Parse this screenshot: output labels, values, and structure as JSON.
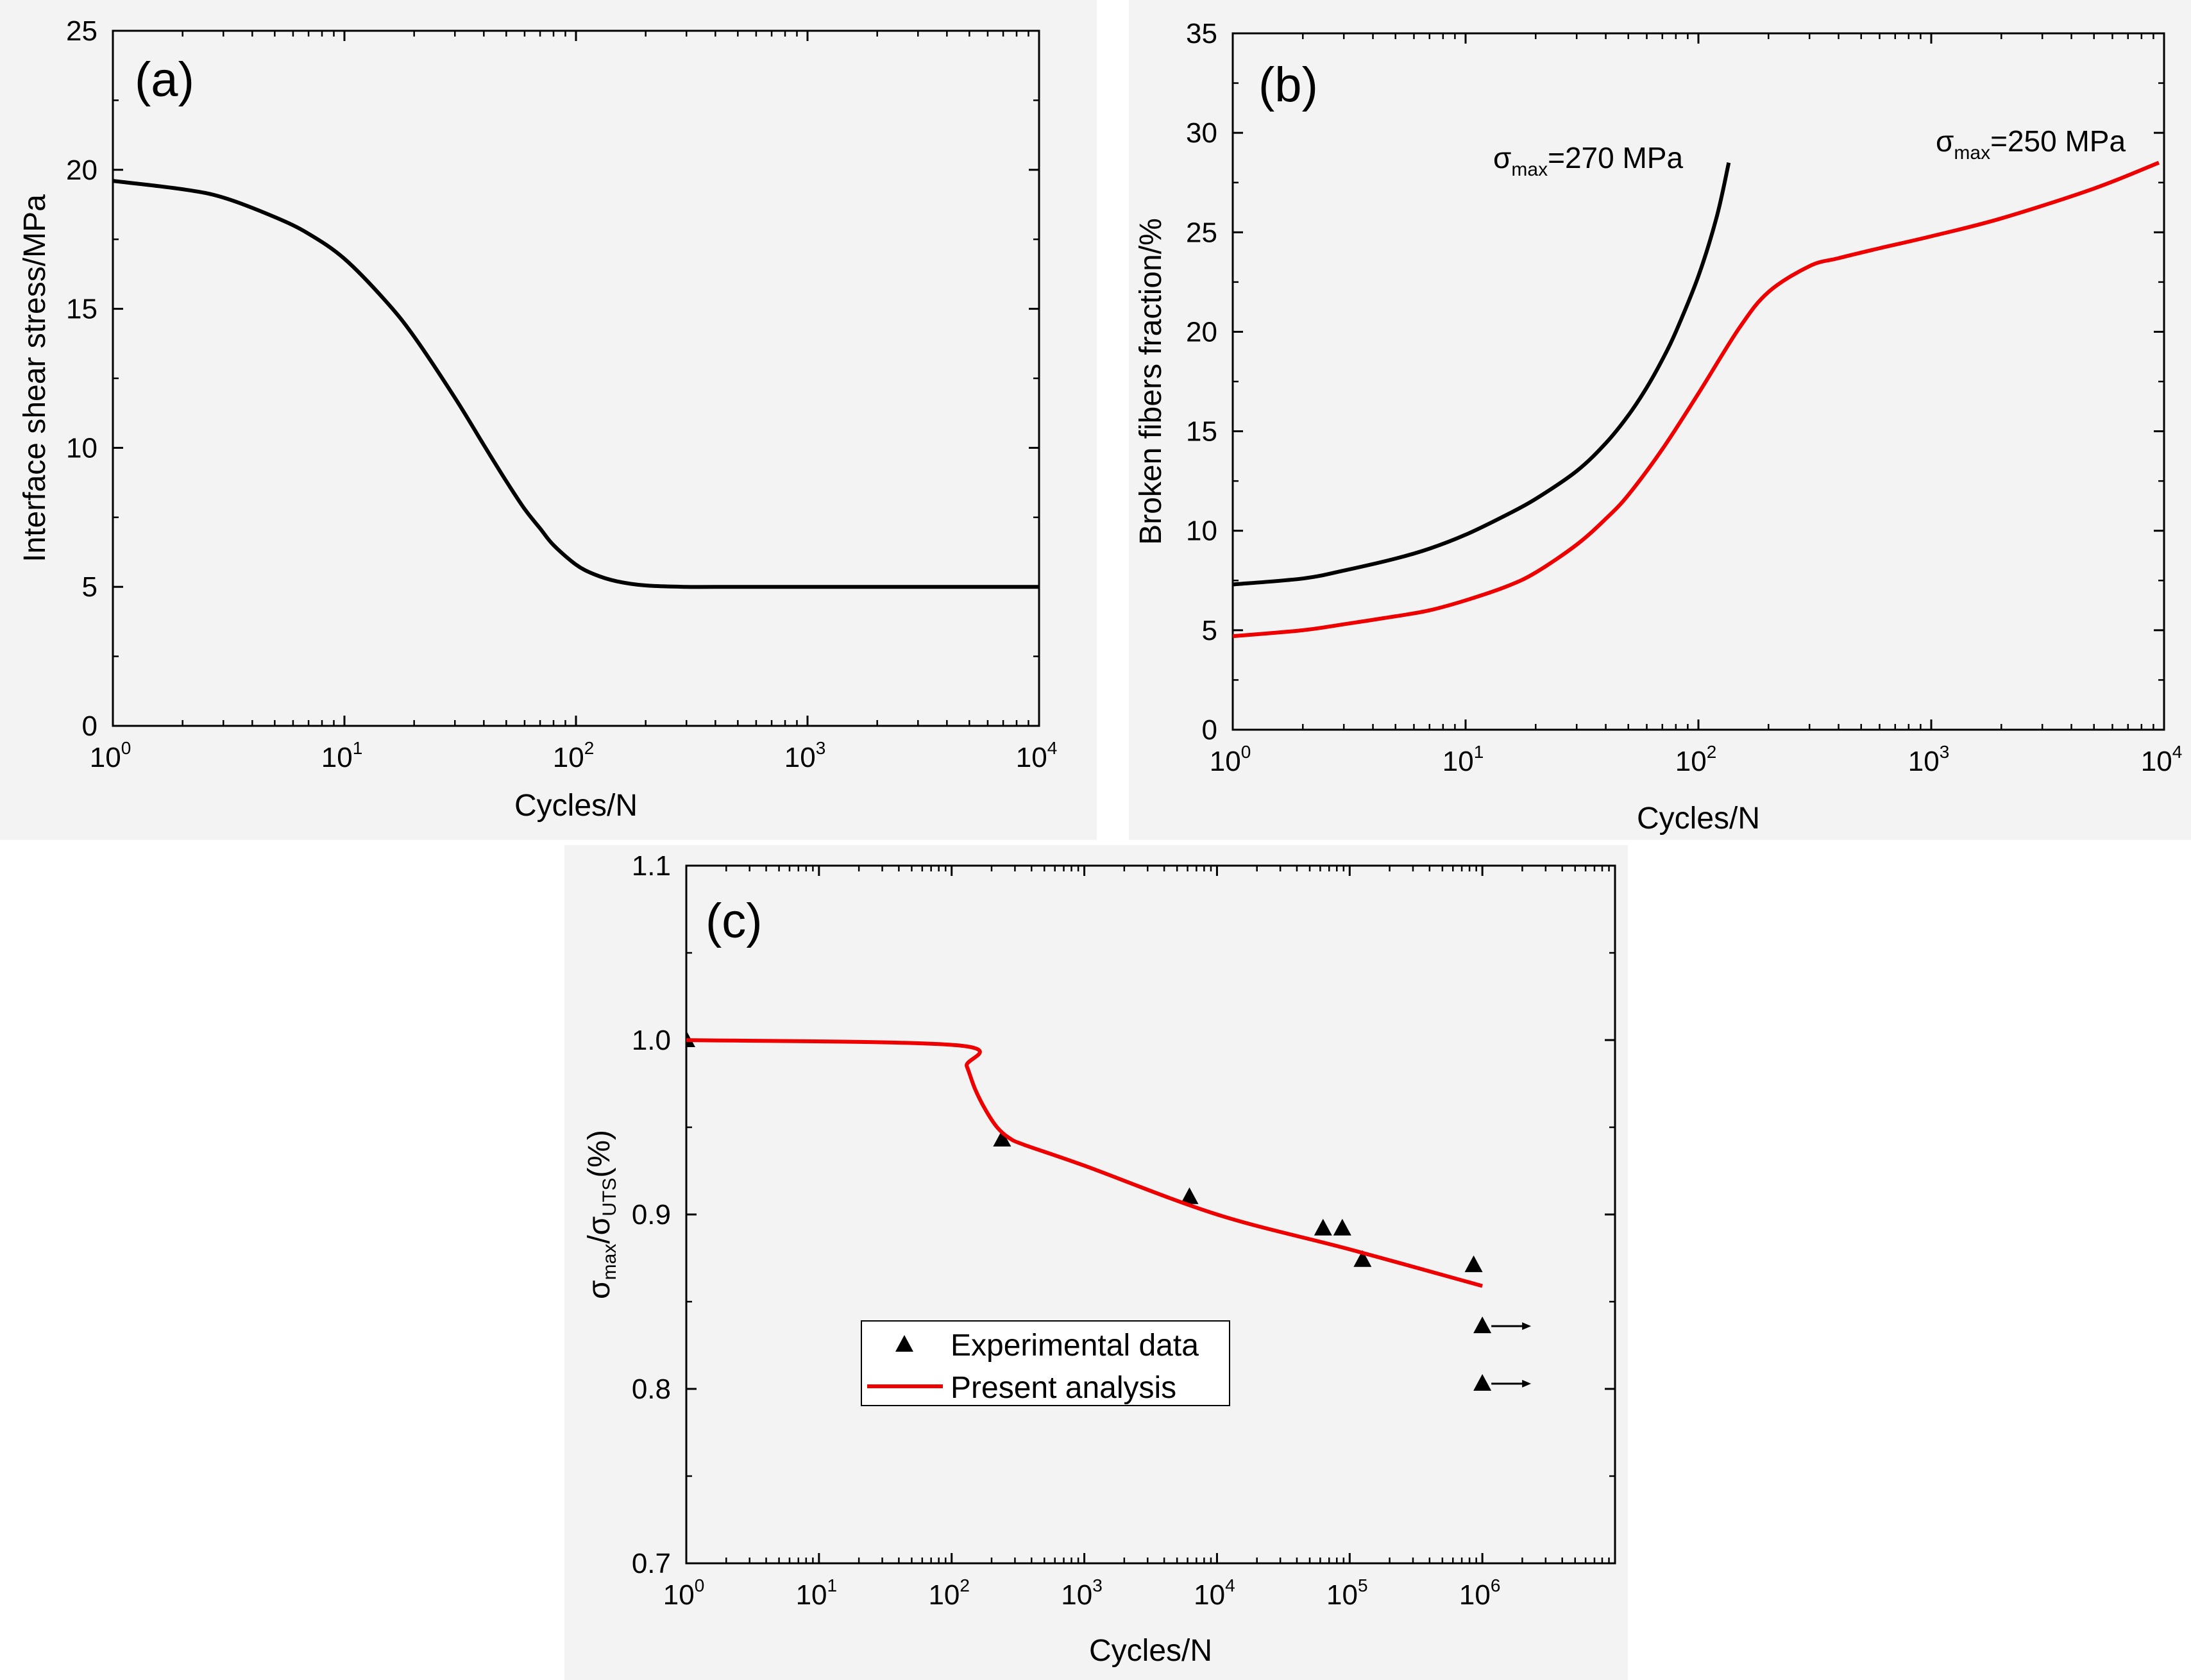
{
  "chart_data": [
    {
      "id": "a",
      "type": "line",
      "panel_label": "(a)",
      "xlabel": "Cycles/N",
      "ylabel": "Interface shear stress/MPa",
      "xscale": "log",
      "xlim": [
        1,
        10000
      ],
      "ylim": [
        0,
        25
      ],
      "yticks": [
        0,
        5,
        10,
        15,
        20,
        25
      ],
      "xtick_exponents": [
        "0",
        "1",
        "2",
        "3",
        "4"
      ],
      "series": [
        {
          "name": "Interface shear stress",
          "color": "#000000",
          "x": [
            1,
            2,
            3,
            5,
            7,
            10,
            15,
            20,
            30,
            40,
            50,
            60,
            70,
            80,
            100,
            120,
            150,
            200,
            300,
            400,
            1000,
            10000
          ],
          "y": [
            19.6,
            19.3,
            19.0,
            18.3,
            17.7,
            16.8,
            15.3,
            14.0,
            11.8,
            10.1,
            8.8,
            7.8,
            7.1,
            6.5,
            5.8,
            5.45,
            5.2,
            5.05,
            5.0,
            5.0,
            5.0,
            5.0
          ]
        }
      ]
    },
    {
      "id": "b",
      "type": "line",
      "panel_label": "(b)",
      "xlabel": "Cycles/N",
      "ylabel": "Broken fibers fraction/%",
      "xscale": "log",
      "xlim": [
        1,
        10000
      ],
      "ylim": [
        0,
        35
      ],
      "yticks": [
        0,
        5,
        10,
        15,
        20,
        25,
        30,
        35
      ],
      "xtick_exponents": [
        "0",
        "1",
        "2",
        "3",
        "4"
      ],
      "annotations": [
        {
          "symbol": "σ",
          "subscript": "max",
          "text": "=270 MPa"
        },
        {
          "symbol": "σ",
          "subscript": "max",
          "text": "=250 MPa"
        }
      ],
      "series": [
        {
          "name": "σmax=270 MPa",
          "color": "#000000",
          "x": [
            1,
            2,
            3,
            5,
            7,
            10,
            15,
            20,
            30,
            40,
            50,
            60,
            70,
            80,
            100,
            120,
            135
          ],
          "y": [
            7.3,
            7.6,
            8.0,
            8.6,
            9.1,
            9.8,
            10.8,
            11.6,
            13.0,
            14.4,
            15.8,
            17.2,
            18.6,
            20.0,
            22.8,
            25.8,
            28.5
          ]
        },
        {
          "name": "σmax=250 MPa",
          "color": "#ee0000",
          "x": [
            1,
            2,
            3,
            5,
            7,
            10,
            15,
            20,
            30,
            40,
            50,
            70,
            100,
            150,
            200,
            300,
            400,
            600,
            1000,
            2000,
            5000,
            9500
          ],
          "y": [
            4.7,
            5.0,
            5.3,
            5.7,
            6.0,
            6.5,
            7.2,
            7.9,
            9.3,
            10.6,
            11.8,
            14.1,
            16.9,
            20.2,
            22.0,
            23.3,
            23.7,
            24.2,
            24.8,
            25.7,
            27.2,
            28.5
          ]
        }
      ]
    },
    {
      "id": "c",
      "type": "scatter",
      "panel_label": "(c)",
      "xlabel": "Cycles/N",
      "ylabel_symbol_1": "σ",
      "ylabel_sub_1": "max",
      "ylabel_sep": "/",
      "ylabel_symbol_2": "σ",
      "ylabel_sub_2": "UTS",
      "ylabel_suffix": "(%)",
      "xscale": "log",
      "xlim": [
        1,
        10000000
      ],
      "ylim": [
        0.7,
        1.1
      ],
      "yticks": [
        "0.7",
        "0.8",
        "0.9",
        "1.0",
        "1.1"
      ],
      "xtick_exponents": [
        "0",
        "1",
        "2",
        "3",
        "4",
        "5",
        "6"
      ],
      "legend": {
        "position": "center-left",
        "entries": [
          "Experimental data",
          "Present analysis"
        ]
      },
      "series": [
        {
          "name": "Experimental data",
          "marker": "triangle",
          "color": "#000000",
          "x": [
            1,
            240,
            6200,
            63000,
            88000,
            125000,
            860000,
            1000000,
            1000000
          ],
          "y": [
            1.0,
            0.943,
            0.91,
            0.892,
            0.892,
            0.874,
            0.871,
            0.836,
            0.803
          ],
          "runout": [
            false,
            false,
            false,
            false,
            false,
            false,
            false,
            true,
            true
          ]
        },
        {
          "name": "Present analysis",
          "type": "line",
          "color": "#ee0000",
          "x": [
            1,
            110,
            130,
            150,
            180,
            220,
            270,
            350,
            1000,
            10000,
            100000,
            1000000
          ],
          "y": [
            1.0,
            0.997,
            0.985,
            0.972,
            0.96,
            0.95,
            0.944,
            0.94,
            0.928,
            0.9,
            0.88,
            0.859
          ]
        }
      ]
    }
  ]
}
